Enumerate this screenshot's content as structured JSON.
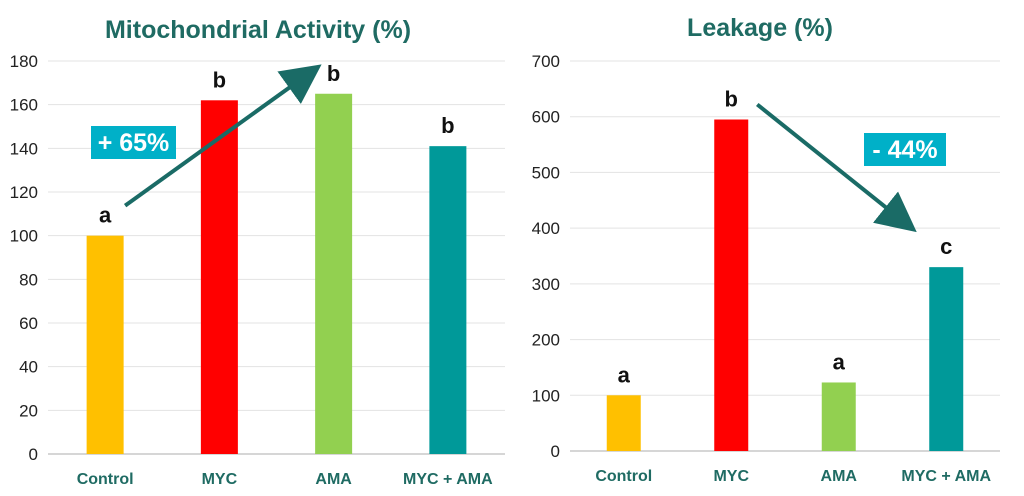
{
  "chart_data": [
    {
      "type": "bar",
      "title": "Mitochondrial Activity (%)",
      "categories": [
        "Control",
        "MYC",
        "AMA",
        "MYC + AMA"
      ],
      "values": [
        100,
        162,
        165,
        141
      ],
      "colors": [
        "#ffc000",
        "#ff0000",
        "#92d050",
        "#009999"
      ],
      "significance": [
        "a",
        "b",
        "b",
        "b"
      ],
      "ylim": [
        0,
        180
      ],
      "yticks": [
        0,
        20,
        40,
        60,
        80,
        100,
        120,
        140,
        160,
        180
      ],
      "grid": true,
      "annotation": {
        "text": "+ 65%",
        "arrow_from": "Control",
        "arrow_to": "AMA"
      }
    },
    {
      "type": "bar",
      "title": "Leakage (%)",
      "categories": [
        "Control",
        "MYC",
        "AMA",
        "MYC + AMA"
      ],
      "values": [
        100,
        595,
        123,
        330
      ],
      "colors": [
        "#ffc000",
        "#ff0000",
        "#92d050",
        "#009999"
      ],
      "significance": [
        "a",
        "b",
        "a",
        "c"
      ],
      "ylim": [
        0,
        700
      ],
      "yticks": [
        0,
        100,
        200,
        300,
        400,
        500,
        600,
        700
      ],
      "grid": true,
      "annotation": {
        "text": "- 44%",
        "arrow_from": "MYC",
        "arrow_to": "MYC + AMA"
      }
    }
  ],
  "style": {
    "title_color": "#1f6b63",
    "arrow_color": "#1a6b66",
    "badge_color": "#00b0c8"
  }
}
